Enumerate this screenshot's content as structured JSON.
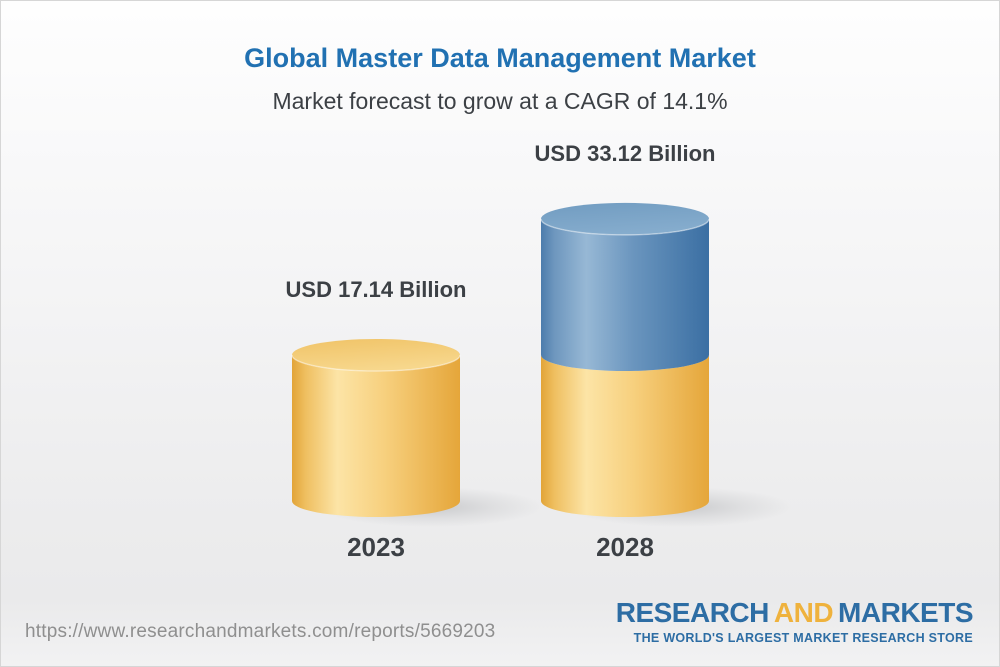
{
  "header": {
    "title": "Global Master Data Management Market",
    "subtitle": "Market forecast to grow at a CAGR of 14.1%"
  },
  "chart_data": {
    "type": "bar",
    "subtype": "3d-stacked-cylinder",
    "title": "Global Master Data Management Market",
    "subtitle": "Market forecast to grow at a CAGR of 14.1%",
    "unit": "USD Billion",
    "cagr_percent": 14.1,
    "categories": [
      "2023",
      "2028"
    ],
    "values": [
      17.14,
      33.12
    ],
    "value_labels": [
      "USD 17.14 Billion",
      "USD 33.12 Billion"
    ],
    "bars": [
      {
        "category": "2023",
        "label": "USD 17.14 Billion",
        "total": 17.14,
        "segments": [
          {
            "value": 17.14,
            "palette": "gold",
            "meaning": "2023 market size"
          }
        ]
      },
      {
        "category": "2028",
        "label": "USD 33.12 Billion",
        "total": 33.12,
        "segments": [
          {
            "value": 17.14,
            "palette": "gold",
            "meaning": "base equal to 2023 market size"
          },
          {
            "value": 15.98,
            "palette": "blue",
            "meaning": "forecast growth 2023-2028"
          }
        ]
      }
    ],
    "palettes": {
      "gold": {
        "side": [
          "#E2A438",
          "#EFBF60",
          "#FCE4A6",
          "#F7D07E",
          "#E5A63A"
        ],
        "cap_back": "#F0C367",
        "cap_front": "#F7D78C"
      },
      "blue": {
        "side": [
          "#4C7CAC",
          "#6E97BE",
          "#97B8D5",
          "#6A95BE",
          "#3B6FA3"
        ],
        "cap_back": "#719CC1",
        "cap_front": "#85ACCD"
      }
    },
    "axis": {
      "grid": false,
      "y_axis_shown": false,
      "x_labels": [
        "2023",
        "2028"
      ]
    }
  },
  "footer": {
    "url": "https://www.researchandmarkets.com/reports/5669203",
    "logo": {
      "research": "RESEARCH",
      "and": "AND",
      "markets": "MARKETS",
      "tagline": "THE WORLD'S LARGEST MARKET RESEARCH STORE"
    }
  },
  "colors": {
    "title_blue": "#2171B2",
    "text_dark": "#3C4045",
    "url_gray": "#8F8F8F",
    "logo_blue": "#2D6DA4",
    "logo_gold": "#EFB23D"
  }
}
